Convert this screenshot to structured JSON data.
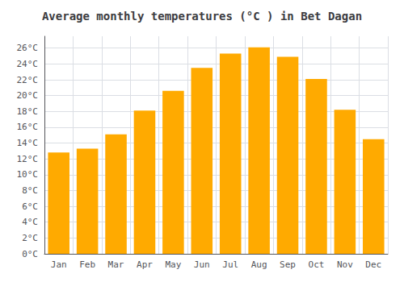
{
  "chart_data": {
    "type": "bar",
    "title": "Average monthly temperatures (°C ) in Bet Dagan",
    "categories": [
      "Jan",
      "Feb",
      "Mar",
      "Apr",
      "May",
      "Jun",
      "Jul",
      "Aug",
      "Sep",
      "Oct",
      "Nov",
      "Dec"
    ],
    "values": [
      12.8,
      13.3,
      15.1,
      18.1,
      20.6,
      23.5,
      25.3,
      26.1,
      24.9,
      22.1,
      18.2,
      14.5
    ],
    "color": "#FFAA00",
    "ylim": [
      0,
      27.5
    ],
    "yticks": [
      {
        "value": 0,
        "label": "0°C"
      },
      {
        "value": 2,
        "label": "2°C"
      },
      {
        "value": 4,
        "label": "4°C"
      },
      {
        "value": 6,
        "label": "6°C"
      },
      {
        "value": 8,
        "label": "8°C"
      },
      {
        "value": 10,
        "label": "10°C"
      },
      {
        "value": 12,
        "label": "12°C"
      },
      {
        "value": 14,
        "label": "14°C"
      },
      {
        "value": 16,
        "label": "16°C"
      },
      {
        "value": 18,
        "label": "18°C"
      },
      {
        "value": 20,
        "label": "20°C"
      },
      {
        "value": 22,
        "label": "22°C"
      },
      {
        "value": 24,
        "label": "24°C"
      },
      {
        "value": 26,
        "label": "26°C"
      }
    ],
    "grid": true
  }
}
